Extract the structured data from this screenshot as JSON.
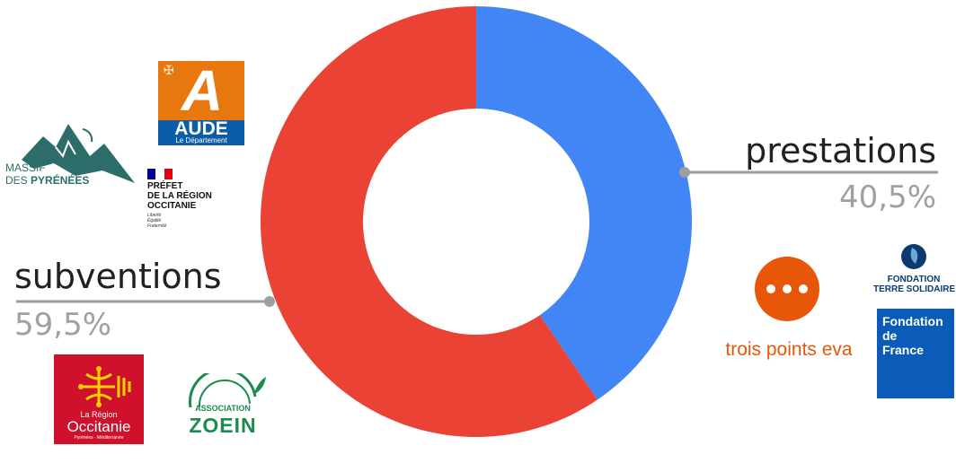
{
  "chart_data": {
    "type": "pie",
    "donut": true,
    "series": [
      {
        "label": "prestations",
        "value_text": "40,5%",
        "value": 40.5,
        "color": "#4285f4"
      },
      {
        "label": "subventions",
        "value_text": "59,5%",
        "value": 59.5,
        "color": "#ea4335"
      }
    ],
    "start_angle_deg": 0,
    "direction": "clockwise",
    "legend": "none"
  },
  "logos": {
    "aude": {
      "name": "AUDE",
      "sub": "Le Département",
      "bg": "#0b5da8",
      "accent": "#e8780e"
    },
    "massif": {
      "line1": "MASSIF",
      "line2_a": "DES ",
      "line2_b": "PYRÉNÉES",
      "color": "#2c6d6a"
    },
    "prefet": {
      "line1": "PRÉFET",
      "line2": "DE LA RÉGION",
      "line3": "OCCITANIE",
      "motto1": "Liberté",
      "motto2": "Égalité",
      "motto3": "Fraternité"
    },
    "occitanie": {
      "line1": "La Région",
      "line2": "Occitanie",
      "line3": "Pyrénées · Méditerranée",
      "bg": "#d0112b",
      "fg": "#ffd200"
    },
    "zoein": {
      "line1": "ASSOCIATION",
      "line2": "ZOEIN",
      "color": "#1d8a4e"
    },
    "trois_points": {
      "text": "trois points eva",
      "color": "#e8560a"
    },
    "terre_solidaire": {
      "line1": "FONDATION",
      "line2": "TERRE SOLIDAIRE",
      "color": "#0b3a6e"
    },
    "fondation_france": {
      "line1": "Fondation",
      "line2": "de",
      "line3": "France",
      "bg": "#0a5cb8"
    }
  }
}
